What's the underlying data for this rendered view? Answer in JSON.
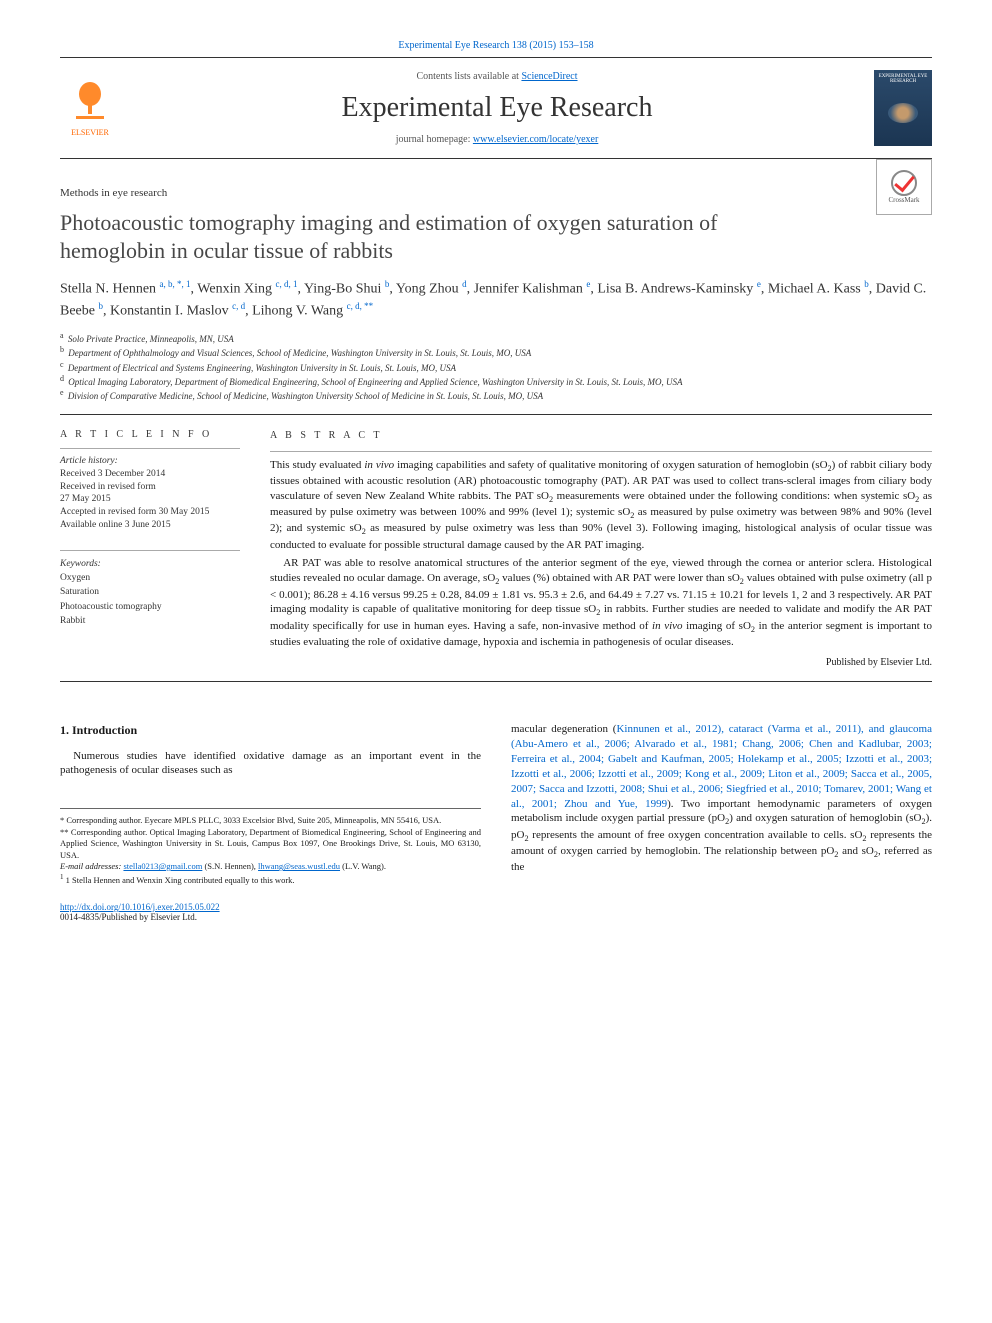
{
  "header": {
    "citation_line": "Experimental Eye Research 138 (2015) 153–158",
    "contents_line_prefix": "Contents lists available at ",
    "contents_line_link": "ScienceDirect",
    "journal_name": "Experimental Eye Research",
    "homepage_prefix": "journal homepage: ",
    "homepage_url": "www.elsevier.com/locate/yexer",
    "publisher_name": "ELSEVIER",
    "cover_title": "EXPERIMENTAL EYE RESEARCH"
  },
  "article": {
    "section_label": "Methods in eye research",
    "title": "Photoacoustic tomography imaging and estimation of oxygen saturation of hemoglobin in ocular tissue of rabbits",
    "crossmark_label": "CrossMark"
  },
  "authors_html": "Stella N. Hennen <sup>a, b, *, 1</sup>, Wenxin Xing <sup>c, d, 1</sup>, Ying-Bo Shui <sup>b</sup>, Yong Zhou <sup>d</sup>, Jennifer Kalishman <sup>e</sup>, Lisa B. Andrews-Kaminsky <sup>e</sup>, Michael A. Kass <sup>b</sup>, David C. Beebe <sup>b</sup>, Konstantin I. Maslov <sup>c, d</sup>, Lihong V. Wang <sup>c, d, **</sup>",
  "affiliations": [
    {
      "sup": "a",
      "text": "Solo Private Practice, Minneapolis, MN, USA"
    },
    {
      "sup": "b",
      "text": "Department of Ophthalmology and Visual Sciences, School of Medicine, Washington University in St. Louis, St. Louis, MO, USA"
    },
    {
      "sup": "c",
      "text": "Department of Electrical and Systems Engineering, Washington University in St. Louis, St. Louis, MO, USA"
    },
    {
      "sup": "d",
      "text": "Optical Imaging Laboratory, Department of Biomedical Engineering, School of Engineering and Applied Science, Washington University in St. Louis, St. Louis, MO, USA"
    },
    {
      "sup": "e",
      "text": "Division of Comparative Medicine, School of Medicine, Washington University School of Medicine in St. Louis, St. Louis, MO, USA"
    }
  ],
  "article_info": {
    "heading": "A R T I C L E   I N F O",
    "history_label": "Article history:",
    "history": [
      "Received 3 December 2014",
      "Received in revised form",
      "27 May 2015",
      "Accepted in revised form 30 May 2015",
      "Available online 3 June 2015"
    ],
    "keywords_label": "Keywords:",
    "keywords": [
      "Oxygen",
      "Saturation",
      "Photoacoustic tomography",
      "Rabbit"
    ]
  },
  "abstract": {
    "heading": "A B S T R A C T",
    "p1": "This study evaluated in vivo imaging capabilities and safety of qualitative monitoring of oxygen saturation of hemoglobin (sO2) of rabbit ciliary body tissues obtained with acoustic resolution (AR) photoacoustic tomography (PAT). AR PAT was used to collect trans-scleral images from ciliary body vasculature of seven New Zealand White rabbits. The PAT sO2 measurements were obtained under the following conditions: when systemic sO2 as measured by pulse oximetry was between 100% and 99% (level 1); systemic sO2 as measured by pulse oximetry was between 98% and 90% (level 2); and systemic sO2 as measured by pulse oximetry was less than 90% (level 3). Following imaging, histological analysis of ocular tissue was conducted to evaluate for possible structural damage caused by the AR PAT imaging.",
    "p2": "AR PAT was able to resolve anatomical structures of the anterior segment of the eye, viewed through the cornea or anterior sclera. Histological studies revealed no ocular damage. On average, sO2 values (%) obtained with AR PAT were lower than sO2 values obtained with pulse oximetry (all p < 0.001); 86.28 ± 4.16 versus 99.25 ± 0.28, 84.09 ± 1.81 vs. 95.3 ± 2.6, and 64.49 ± 7.27 vs. 71.15 ± 10.21 for levels 1, 2 and 3 respectively. AR PAT imaging modality is capable of qualitative monitoring for deep tissue sO2 in rabbits. Further studies are needed to validate and modify the AR PAT modality specifically for use in human eyes. Having a safe, non-invasive method of in vivo imaging of sO2 in the anterior segment is important to studies evaluating the role of oxidative damage, hypoxia and ischemia in pathogenesis of ocular diseases.",
    "publisher_line": "Published by Elsevier Ltd."
  },
  "body": {
    "intro_heading": "1. Introduction",
    "intro_p1": "Numerous studies have identified oxidative damage as an important event in the pathogenesis of ocular diseases such as",
    "col2_lead": "macular degeneration (",
    "col2_cites": "Kinnunen et al., 2012), cataract (Varma et al., 2011), and glaucoma (Abu-Amero et al., 2006; Alvarado et al., 1981; Chang, 2006; Chen and Kadlubar, 2003; Ferreira et al., 2004; Gabelt and Kaufman, 2005; Holekamp et al., 2005; Izzotti et al., 2003; Izzotti et al., 2006; Izzotti et al., 2009; Kong et al., 2009; Liton et al., 2009; Sacca et al., 2005, 2007; Sacca and Izzotti, 2008; Shui et al., 2006; Siegfried et al., 2010; Tomarev, 2001; Wang et al., 2001; Zhou and Yue, 1999",
    "col2_tail": "). Two important hemodynamic parameters of oxygen metabolism include oxygen partial pressure (pO2) and oxygen saturation of hemoglobin (sO2). pO2 represents the amount of free oxygen concentration available to cells. sO2 represents the amount of oxygen carried by hemoglobin. The relationship between pO2 and sO2, referred as the"
  },
  "footnotes": {
    "corr1": "* Corresponding author. Eyecare MPLS PLLC, 3033 Excelsior Blvd, Suite 205, Minneapolis, MN 55416, USA.",
    "corr2": "** Corresponding author. Optical Imaging Laboratory, Department of Biomedical Engineering, School of Engineering and Applied Science, Washington University in St. Louis, Campus Box 1097, One Brookings Drive, St. Louis, MO 63130, USA.",
    "email_label": "E-mail addresses: ",
    "email1": "stella0213@gmail.com",
    "email1_who": " (S.N. Hennen), ",
    "email2": "lhwang@seas.wustl.edu",
    "email2_who": " (L.V. Wang).",
    "contrib": "1 Stella Hennen and Wenxin Xing contributed equally to this work."
  },
  "bottom": {
    "doi": "http://dx.doi.org/10.1016/j.exer.2015.05.022",
    "copyright": "0014-4835/Published by Elsevier Ltd."
  },
  "colors": {
    "link": "#0066cc",
    "elsevier_orange": "#ff6600",
    "cover_bg_top": "#2b4a6b",
    "cover_bg_bottom": "#1b3552"
  }
}
